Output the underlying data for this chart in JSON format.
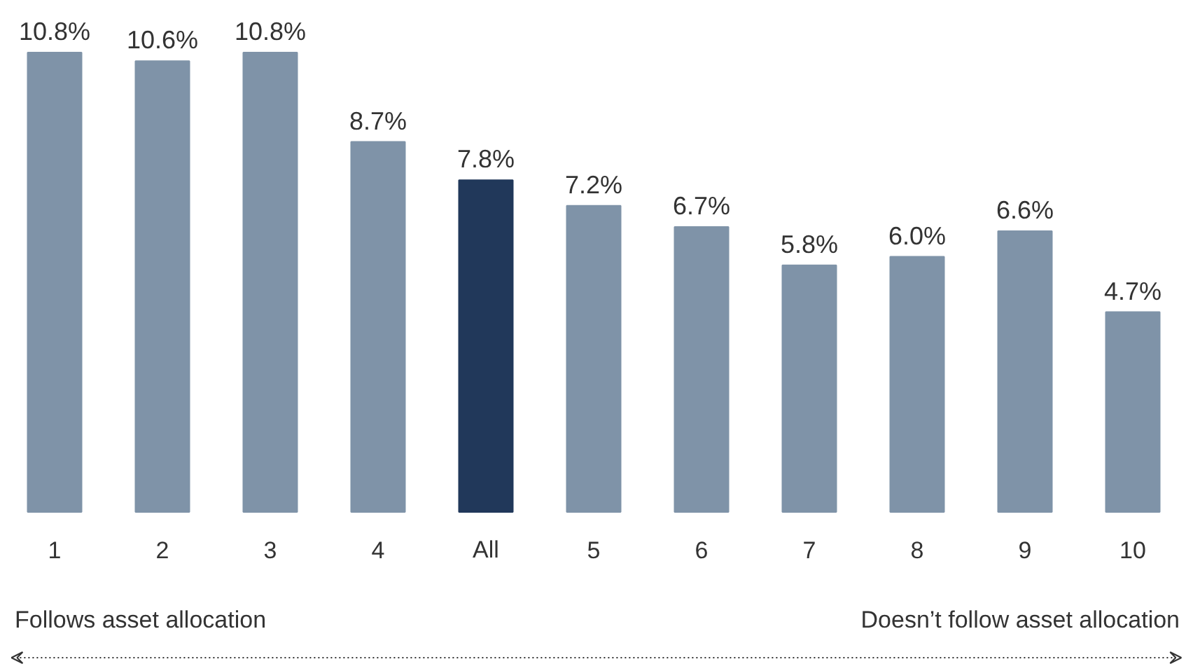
{
  "chart_data": {
    "type": "bar",
    "categories": [
      "1",
      "2",
      "3",
      "4",
      "All",
      "5",
      "6",
      "7",
      "8",
      "9",
      "10"
    ],
    "values": [
      10.8,
      10.6,
      10.8,
      8.7,
      7.8,
      7.2,
      6.7,
      5.8,
      6.0,
      6.6,
      4.7
    ],
    "value_labels": [
      "10.8%",
      "10.6%",
      "10.8%",
      "8.7%",
      "7.8%",
      "7.2%",
      "6.7%",
      "5.8%",
      "6.0%",
      "6.6%",
      "4.7%"
    ],
    "colors": [
      "#7f93a8",
      "#7f93a8",
      "#7f93a8",
      "#7f93a8",
      "#21385a",
      "#7f93a8",
      "#7f93a8",
      "#7f93a8",
      "#7f93a8",
      "#7f93a8",
      "#7f93a8"
    ],
    "tick_labels": "x",
    "annotations": [
      "Follows asset allocation",
      "Doesn’t follow asset allocation"
    ]
  }
}
